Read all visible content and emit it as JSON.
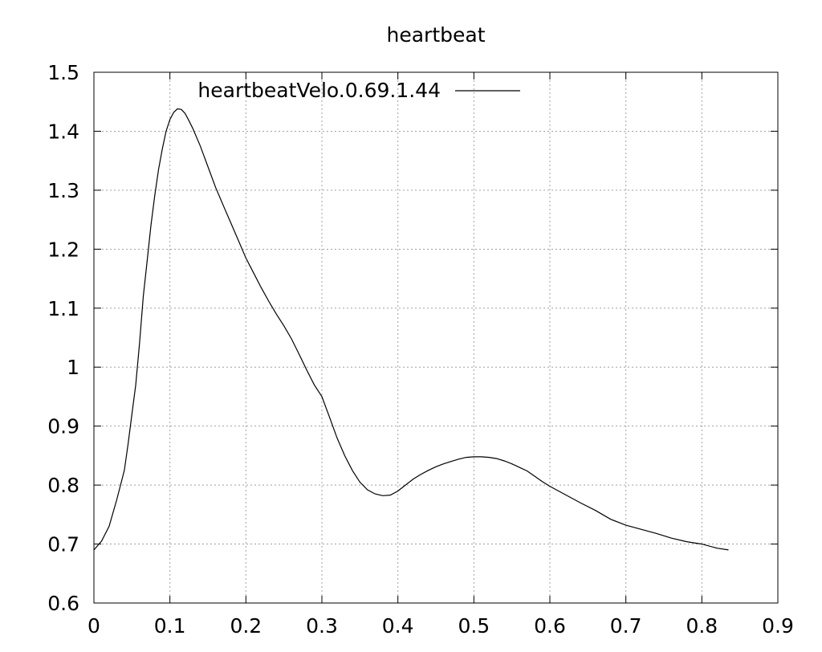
{
  "chart_data": {
    "type": "line",
    "title": "heartbeat",
    "xlabel": "",
    "ylabel": "",
    "xlim": [
      0,
      0.9
    ],
    "ylim": [
      0.6,
      1.5
    ],
    "xticks": [
      0,
      0.1,
      0.2,
      0.3,
      0.4,
      0.5,
      0.6,
      0.7,
      0.8,
      0.9
    ],
    "yticks": [
      0.6,
      0.7,
      0.8,
      0.9,
      1,
      1.1,
      1.2,
      1.3,
      1.4,
      1.5
    ],
    "grid": true,
    "legend_position": "top",
    "series": [
      {
        "name": "heartbeatVelo.0.69.1.44",
        "color": "#000000",
        "x": [
          0,
          0.01,
          0.02,
          0.03,
          0.04,
          0.045,
          0.05,
          0.055,
          0.06,
          0.065,
          0.07,
          0.075,
          0.08,
          0.085,
          0.09,
          0.095,
          0.1,
          0.105,
          0.11,
          0.115,
          0.12,
          0.125,
          0.13,
          0.14,
          0.15,
          0.16,
          0.17,
          0.18,
          0.19,
          0.2,
          0.21,
          0.22,
          0.23,
          0.24,
          0.25,
          0.26,
          0.27,
          0.28,
          0.29,
          0.3,
          0.31,
          0.32,
          0.33,
          0.34,
          0.35,
          0.36,
          0.37,
          0.38,
          0.39,
          0.4,
          0.41,
          0.42,
          0.43,
          0.44,
          0.45,
          0.46,
          0.47,
          0.48,
          0.49,
          0.5,
          0.51,
          0.52,
          0.53,
          0.54,
          0.55,
          0.56,
          0.57,
          0.58,
          0.59,
          0.6,
          0.62,
          0.64,
          0.66,
          0.68,
          0.7,
          0.72,
          0.74,
          0.76,
          0.78,
          0.8,
          0.82,
          0.835
        ],
        "y": [
          0.69,
          0.705,
          0.73,
          0.775,
          0.825,
          0.87,
          0.92,
          0.97,
          1.04,
          1.12,
          1.18,
          1.24,
          1.29,
          1.335,
          1.37,
          1.4,
          1.42,
          1.432,
          1.438,
          1.437,
          1.43,
          1.418,
          1.405,
          1.375,
          1.34,
          1.305,
          1.275,
          1.245,
          1.215,
          1.185,
          1.16,
          1.135,
          1.112,
          1.09,
          1.07,
          1.048,
          1.022,
          0.995,
          0.97,
          0.95,
          0.915,
          0.88,
          0.85,
          0.825,
          0.805,
          0.792,
          0.785,
          0.782,
          0.783,
          0.79,
          0.8,
          0.81,
          0.818,
          0.825,
          0.831,
          0.836,
          0.84,
          0.844,
          0.847,
          0.848,
          0.848,
          0.847,
          0.845,
          0.841,
          0.836,
          0.83,
          0.824,
          0.815,
          0.806,
          0.798,
          0.784,
          0.77,
          0.757,
          0.742,
          0.732,
          0.725,
          0.718,
          0.71,
          0.704,
          0.7,
          0.693,
          0.69
        ]
      }
    ]
  }
}
